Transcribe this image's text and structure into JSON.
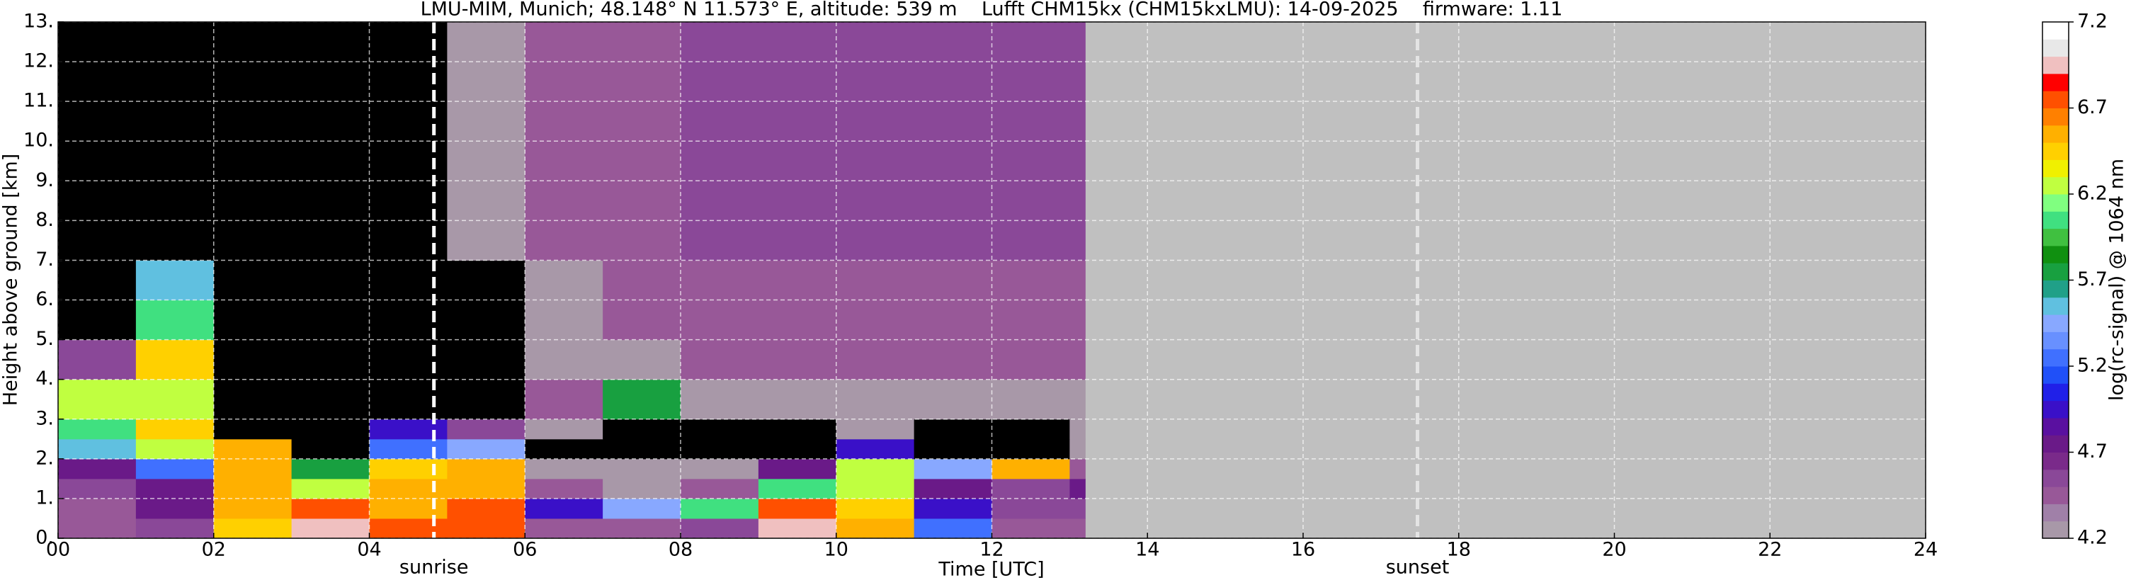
{
  "chart_data": {
    "type": "heatmap",
    "title": "LMU-MIM, Munich; 48.148° N 11.573° E, altitude: 539 m    Lufft CHM15kx (CHM15kxLMU): 14-09-2025    firmware: 1.11",
    "xlabel": "Time [UTC]",
    "ylabel": "Height above ground [km]",
    "colorbar_label": "log(rc-signal) @ 1064 nm",
    "xlim": [
      0,
      24
    ],
    "ylim": [
      0,
      13
    ],
    "xticks": [
      {
        "value": 0,
        "label": "00"
      },
      {
        "value": 2,
        "label": "02"
      },
      {
        "value": 4,
        "label": "04"
      },
      {
        "value": 6,
        "label": "06"
      },
      {
        "value": 8,
        "label": "08"
      },
      {
        "value": 10,
        "label": "10"
      },
      {
        "value": 12,
        "label": "12"
      },
      {
        "value": 14,
        "label": "14"
      },
      {
        "value": 16,
        "label": "16"
      },
      {
        "value": 18,
        "label": "18"
      },
      {
        "value": 20,
        "label": "20"
      },
      {
        "value": 22,
        "label": "22"
      },
      {
        "value": 24,
        "label": "24"
      }
    ],
    "yticks": [
      {
        "value": 0,
        "label": "0."
      },
      {
        "value": 1,
        "label": "1."
      },
      {
        "value": 2,
        "label": "2."
      },
      {
        "value": 3,
        "label": "3."
      },
      {
        "value": 4,
        "label": "4."
      },
      {
        "value": 5,
        "label": "5."
      },
      {
        "value": 6,
        "label": "6."
      },
      {
        "value": 7,
        "label": "7."
      },
      {
        "value": 8,
        "label": "8."
      },
      {
        "value": 9,
        "label": "9."
      },
      {
        "value": 10,
        "label": "10."
      },
      {
        "value": 11,
        "label": "11."
      },
      {
        "value": 12,
        "label": "12."
      },
      {
        "value": 13,
        "label": "13."
      }
    ],
    "grid": true,
    "x_edges": [
      0,
      1,
      2,
      3,
      4,
      5,
      6,
      7,
      8,
      9,
      10,
      11,
      12,
      13,
      13.2
    ],
    "y_edges": [
      0,
      0.5,
      1,
      1.5,
      2,
      2.5,
      3,
      4,
      5,
      6,
      7,
      8,
      10,
      13
    ],
    "z": [
      [
        4.5,
        4.6,
        6.4,
        6.9,
        6.8,
        6.8,
        4.4,
        4.4,
        4.6,
        6.9,
        6.5,
        5.2,
        4.5,
        4.5
      ],
      [
        4.5,
        4.7,
        6.6,
        6.7,
        6.5,
        6.7,
        5.0,
        5.5,
        6.0,
        6.8,
        6.4,
        5.0,
        4.6,
        4.6
      ],
      [
        4.6,
        4.8,
        6.5,
        6.2,
        6.6,
        6.6,
        4.4,
        4.3,
        4.5,
        6.0,
        6.3,
        4.8,
        4.6,
        4.7
      ],
      [
        4.7,
        5.2,
        6.6,
        5.8,
        6.4,
        6.5,
        4.3,
        4.3,
        4.3,
        4.8,
        6.2,
        5.5,
        6.5,
        4.4
      ],
      [
        5.6,
        6.2,
        6.6,
        4.0,
        5.2,
        5.5,
        4.0,
        4.0,
        4.0,
        4.0,
        4.9,
        4.0,
        4.0,
        4.3
      ],
      [
        6.0,
        6.4,
        4.0,
        4.0,
        4.9,
        4.6,
        4.3,
        4.1,
        4.1,
        4.1,
        4.2,
        4.1,
        4.1,
        4.2
      ],
      [
        6.3,
        6.3,
        4.0,
        4.0,
        4.0,
        4.1,
        4.4,
        5.8,
        4.2,
        4.3,
        4.3,
        4.3,
        4.3,
        4.3
      ],
      [
        4.6,
        6.4,
        4.0,
        4.0,
        4.0,
        4.1,
        4.3,
        4.3,
        4.4,
        4.4,
        4.4,
        4.4,
        4.4,
        4.4
      ],
      [
        4.1,
        6.0,
        4.0,
        4.0,
        4.1,
        4.1,
        4.3,
        4.4,
        4.5,
        4.5,
        4.5,
        4.5,
        4.5,
        4.5
      ],
      [
        4.0,
        5.6,
        4.0,
        4.0,
        4.1,
        4.1,
        4.3,
        4.4,
        4.5,
        4.5,
        4.5,
        4.5,
        4.5,
        4.5
      ],
      [
        4.0,
        4.0,
        4.0,
        4.0,
        4.1,
        4.2,
        4.4,
        4.5,
        4.6,
        4.6,
        4.6,
        4.6,
        4.6,
        4.6
      ],
      [
        4.0,
        4.0,
        4.0,
        4.0,
        4.1,
        4.2,
        4.4,
        4.5,
        4.6,
        4.6,
        4.6,
        4.6,
        4.6,
        4.6
      ],
      [
        4.0,
        4.0,
        4.0,
        4.0,
        4.1,
        4.2,
        4.4,
        4.5,
        4.6,
        4.6,
        4.6,
        4.6,
        4.6,
        4.6
      ]
    ],
    "clim": [
      4.2,
      7.2
    ],
    "cticks": [
      4.2,
      4.7,
      5.2,
      5.7,
      6.2,
      6.7,
      7.2
    ],
    "colorscale": [
      "#a898a8",
      "#a080a8",
      "#985898",
      "#8a4898",
      "#7a2a8a",
      "#6a1a88",
      "#5a10a0",
      "#3a10c8",
      "#2020e8",
      "#2050f8",
      "#4070ff",
      "#6890ff",
      "#88a8ff",
      "#60c0e0",
      "#20a088",
      "#18a040",
      "#109010",
      "#40c040",
      "#40e080",
      "#80ff80",
      "#c0ff40",
      "#f0f000",
      "#ffd000",
      "#ffb000",
      "#ff8000",
      "#ff5000",
      "#ff0000",
      "#f0c0c0",
      "#e8e8e8",
      "#ffffff"
    ],
    "under_color": "#000000",
    "nodata_color": "#c0c0c0",
    "events": [
      {
        "label": "sunrise",
        "x": 4.83,
        "color": "#ffffff"
      },
      {
        "label": "sunset",
        "x": 17.47,
        "color": "#e4e4e4"
      }
    ]
  }
}
